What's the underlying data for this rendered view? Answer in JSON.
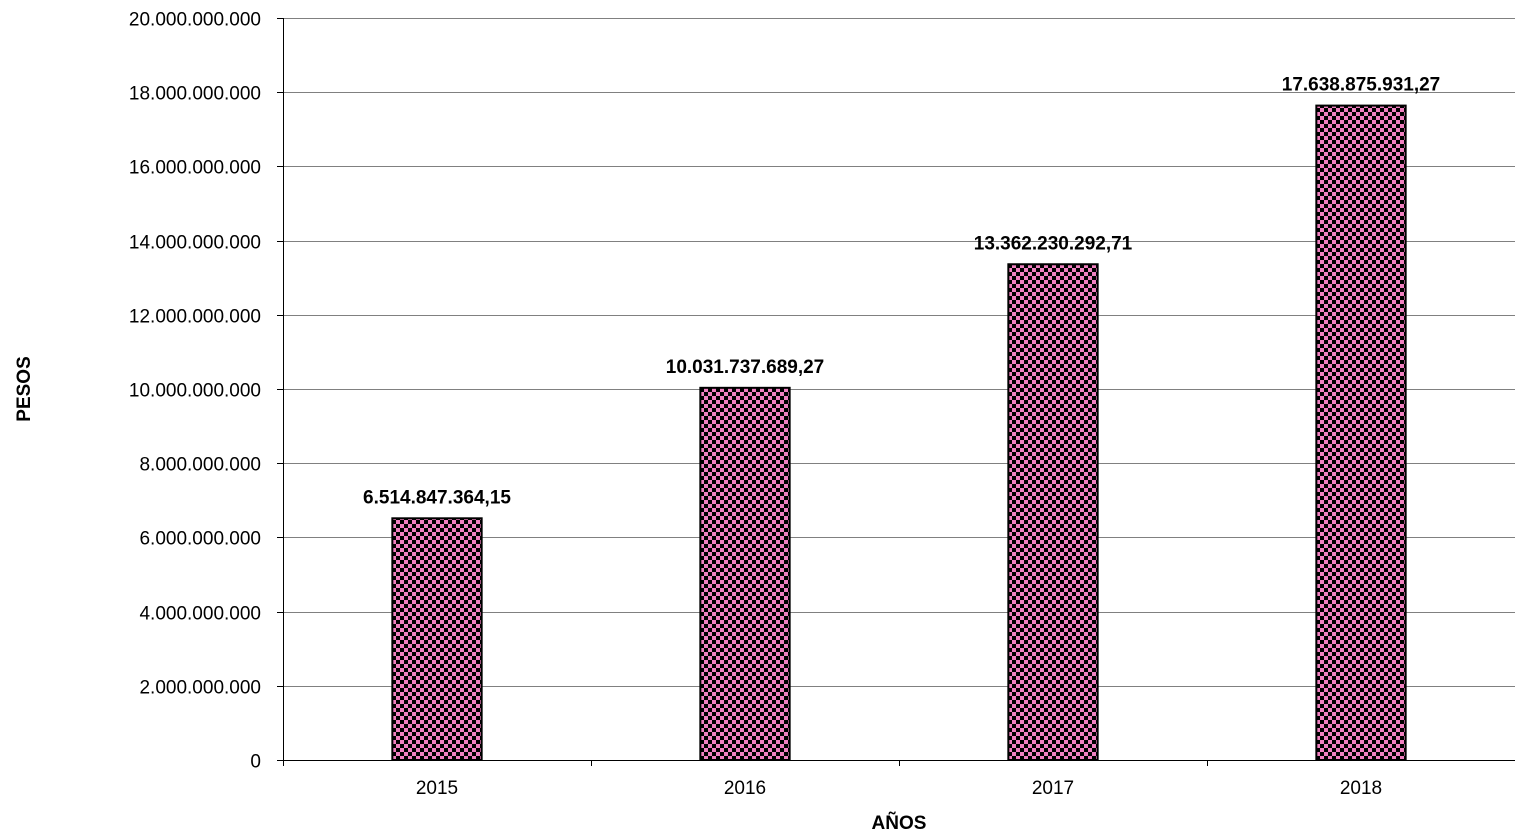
{
  "chart_data": {
    "type": "bar",
    "title": "",
    "xlabel": "AÑOS",
    "ylabel": "PESOS",
    "categories": [
      "2015",
      "2016",
      "2017",
      "2018"
    ],
    "values": [
      6514847364.15,
      10031737689.27,
      13362230292.71,
      17638875931.27
    ],
    "value_labels": [
      "6.514.847.364,15",
      "10.031.737.689,27",
      "13.362.230.292,71",
      "17.638.875.931,27"
    ],
    "ylim": [
      0,
      20000000000
    ],
    "yticks": [
      0,
      2000000000,
      4000000000,
      6000000000,
      8000000000,
      10000000000,
      12000000000,
      14000000000,
      16000000000,
      18000000000,
      20000000000
    ],
    "ytick_labels": [
      "0",
      "2.000.000.000",
      "4.000.000.000",
      "6.000.000.000",
      "8.000.000.000",
      "10.000.000.000",
      "12.000.000.000",
      "14.000.000.000",
      "16.000.000.000",
      "18.000.000.000",
      "20.000.000.000"
    ],
    "grid": true,
    "legend": "none",
    "bar_pattern": "checkerboard",
    "colors": {
      "bar_fill": "#f080c0",
      "bar_pattern": "#000000",
      "grid": "#808080",
      "axis": "#000000"
    }
  }
}
